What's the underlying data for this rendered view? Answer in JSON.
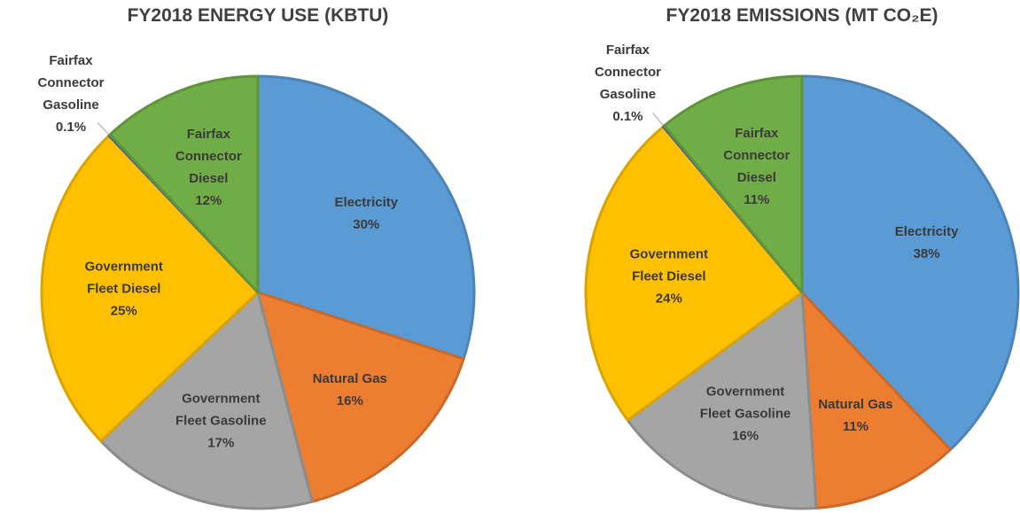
{
  "chart_data": [
    {
      "type": "pie",
      "title": "FY2018 ENERGY USE (KBTU)",
      "categories": [
        "Electricity",
        "Natural Gas",
        "Government Fleet Gasoline",
        "Government Fleet Diesel",
        "Fairfax Connector Gasoline",
        "Fairfax Connector Diesel"
      ],
      "values": [
        30,
        16,
        17,
        25,
        0.1,
        12
      ],
      "value_labels": [
        "30%",
        "16%",
        "17%",
        "25%",
        "0.1%",
        "12%"
      ],
      "colors": [
        "#5b9bd5",
        "#ed7d31",
        "#a5a5a5",
        "#ffc000",
        "#4472c4",
        "#70ad47"
      ]
    },
    {
      "type": "pie",
      "title": "FY2018 EMISSIONS (MT CO₂E)",
      "categories": [
        "Electricity",
        "Natural Gas",
        "Government Fleet Gasoline",
        "Government Fleet Diesel",
        "Fairfax Connector Gasoline",
        "Fairfax Connector Diesel"
      ],
      "values": [
        38,
        11,
        16,
        24,
        0.1,
        11
      ],
      "value_labels": [
        "38%",
        "11%",
        "16%",
        "24%",
        "0.1%",
        "11%"
      ],
      "colors": [
        "#5b9bd5",
        "#ed7d31",
        "#a5a5a5",
        "#ffc000",
        "#4472c4",
        "#70ad47"
      ]
    }
  ]
}
